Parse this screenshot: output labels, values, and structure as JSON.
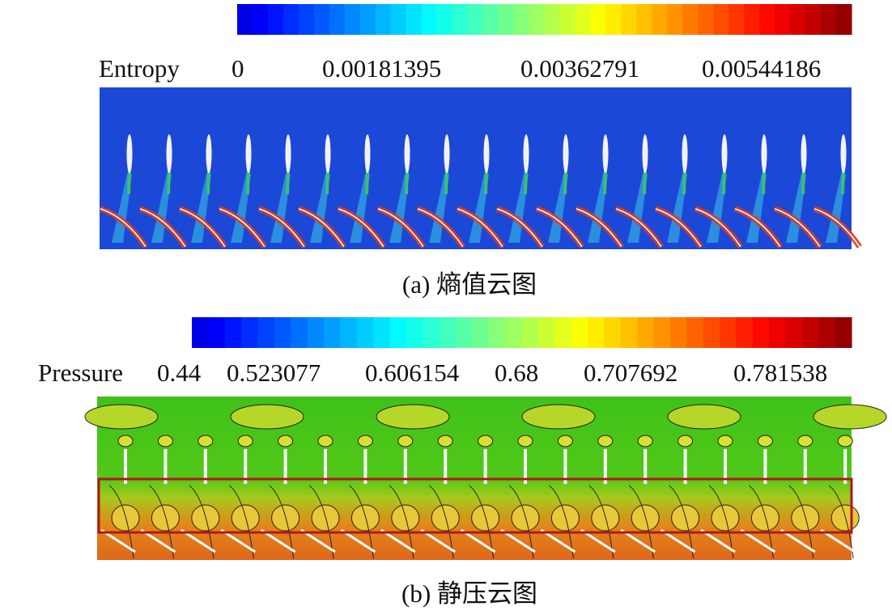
{
  "panels": [
    {
      "label": "Entropy",
      "ticks": [
        0,
        0.00181395,
        0.00362791,
        0.00544186
      ],
      "caption": "(a) 熵值云图"
    },
    {
      "label": "Pressure",
      "ticks": [
        0.44,
        0.523077,
        0.606154,
        0.68,
        0.707692,
        0.781538
      ],
      "caption": "(b) 静压云图"
    }
  ]
}
